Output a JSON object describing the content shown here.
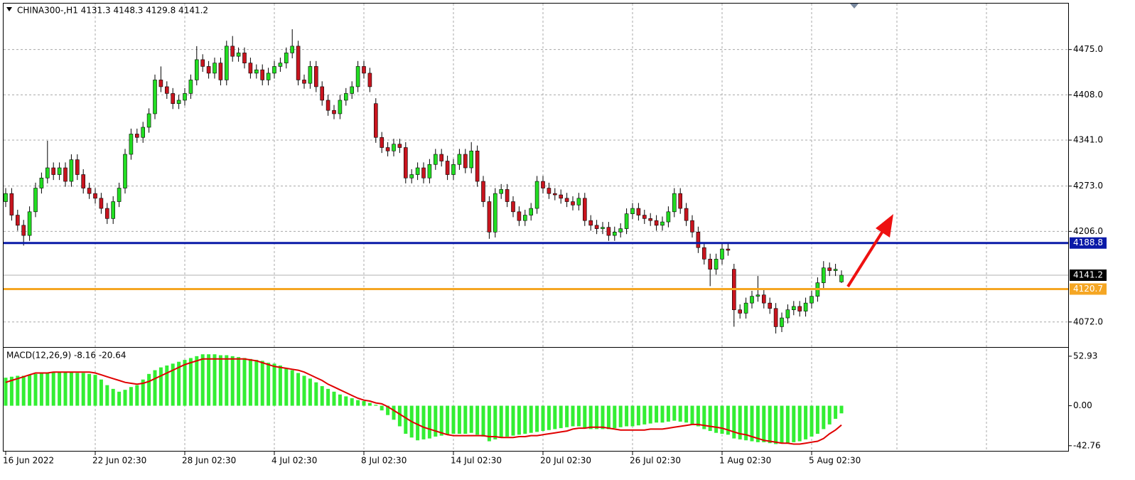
{
  "chart_data": [
    {
      "type": "candlestick",
      "title": "CHINA300-,H1  4131.3 4148.3 4129.8 4141.2",
      "categories": [
        "16 Jun 2022",
        null,
        null,
        null,
        null,
        null,
        null,
        null,
        null,
        null,
        null,
        null,
        null,
        null,
        null,
        "22 Jun 02:30",
        null,
        null,
        null,
        null,
        null,
        null,
        null,
        null,
        null,
        null,
        null,
        null,
        null,
        null,
        "28 Jun 02:30",
        null,
        null,
        null,
        null,
        null,
        null,
        null,
        null,
        null,
        null,
        null,
        null,
        null,
        null,
        "4 Jul 02:30",
        null,
        null,
        null,
        null,
        null,
        null,
        null,
        null,
        null,
        null,
        null,
        null,
        null,
        null,
        "8 Jul 02:30",
        null,
        null,
        null,
        null,
        null,
        null,
        null,
        null,
        null,
        null,
        null,
        null,
        null,
        null,
        "14 Jul 02:30",
        null,
        null,
        null,
        null,
        null,
        null,
        null,
        null,
        null,
        null,
        null,
        null,
        null,
        null,
        "20 Jul 02:30",
        null,
        null,
        null,
        null,
        null,
        null,
        null,
        null,
        null,
        null,
        null,
        null,
        null,
        null,
        "26 Jul 02:30",
        null,
        null,
        null,
        null,
        null,
        null,
        null,
        null,
        null,
        null,
        null,
        null,
        null,
        null,
        "1 Aug 02:30",
        null,
        null,
        null,
        null,
        null,
        null,
        null,
        null,
        null,
        null,
        null,
        null,
        null,
        null,
        "5 Aug 02:30",
        null,
        null,
        null,
        null,
        null
      ],
      "open": [
        4250,
        4262,
        4230,
        4215,
        4200,
        4235,
        4270,
        4285,
        4300,
        4290,
        4300,
        4280,
        4312,
        4290,
        4270,
        4262,
        4255,
        4240,
        4225,
        4250,
        4270,
        4320,
        4350,
        4345,
        4360,
        4380,
        4430,
        4420,
        4410,
        4395,
        4400,
        4410,
        4430,
        4460,
        4450,
        4440,
        4455,
        4430,
        4480,
        4465,
        4470,
        4455,
        4440,
        4445,
        4430,
        4440,
        4450,
        4455,
        4470,
        4480,
        4430,
        4425,
        4450,
        4420,
        4400,
        4385,
        4380,
        4400,
        4410,
        4420,
        4450,
        4440,
        4395,
        4345,
        4330,
        4325,
        4335,
        4330,
        4285,
        4290,
        4300,
        4285,
        4305,
        4320,
        4310,
        4290,
        4305,
        4320,
        4300,
        4325,
        4280,
        4250,
        4205,
        4262,
        4268,
        4250,
        4235,
        4222,
        4230,
        4240,
        4280,
        4270,
        4262,
        4260,
        4255,
        4250,
        4245,
        4255,
        4222,
        4215,
        4210,
        4212,
        4200,
        4205,
        4210,
        4232,
        4240,
        4230,
        4225,
        4222,
        4215,
        4220,
        4235,
        4262,
        4240,
        4222,
        4205,
        4182,
        4165,
        4150,
        4165,
        4180,
        4150,
        4090,
        4085,
        4100,
        4110,
        4112,
        4100,
        4092,
        4065,
        4078,
        4090,
        4095,
        4088,
        4100,
        4110,
        4130,
        4152,
        4148,
        4131.3
      ],
      "high": [
        4270,
        4270,
        4238,
        4223,
        4243,
        4278,
        4293,
        4340,
        4308,
        4308,
        4308,
        4320,
        4320,
        4298,
        4278,
        4270,
        4263,
        4248,
        4258,
        4278,
        4328,
        4358,
        4358,
        4368,
        4388,
        4438,
        4450,
        4428,
        4418,
        4408,
        4418,
        4438,
        4480,
        4468,
        4458,
        4463,
        4463,
        4488,
        4495,
        4478,
        4478,
        4463,
        4453,
        4453,
        4448,
        4458,
        4463,
        4478,
        4505,
        4488,
        4438,
        4458,
        4458,
        4428,
        4408,
        4393,
        4408,
        4418,
        4428,
        4458,
        4458,
        4448,
        4403,
        4353,
        4338,
        4343,
        4343,
        4338,
        4298,
        4308,
        4308,
        4313,
        4328,
        4328,
        4318,
        4313,
        4328,
        4328,
        4338,
        4333,
        4288,
        4258,
        4270,
        4276,
        4276,
        4258,
        4243,
        4238,
        4248,
        4288,
        4288,
        4278,
        4270,
        4268,
        4263,
        4258,
        4263,
        4263,
        4230,
        4223,
        4220,
        4220,
        4213,
        4218,
        4240,
        4248,
        4248,
        4238,
        4233,
        4230,
        4228,
        4243,
        4270,
        4270,
        4248,
        4230,
        4213,
        4190,
        4173,
        4173,
        4188,
        4188,
        4158,
        4098,
        4108,
        4118,
        4140,
        4120,
        4108,
        4100,
        4086,
        4098,
        4103,
        4103,
        4108,
        4118,
        4138,
        4162,
        4160,
        4158,
        4148.3
      ],
      "low": [
        4242,
        4222,
        4207,
        4185,
        4192,
        4227,
        4262,
        4277,
        4282,
        4282,
        4272,
        4272,
        4282,
        4262,
        4254,
        4247,
        4232,
        4217,
        4217,
        4242,
        4262,
        4312,
        4337,
        4337,
        4352,
        4372,
        4412,
        4402,
        4387,
        4387,
        4392,
        4402,
        4422,
        4442,
        4432,
        4432,
        4422,
        4422,
        4457,
        4457,
        4447,
        4432,
        4432,
        4422,
        4422,
        4432,
        4442,
        4447,
        4462,
        4422,
        4417,
        4417,
        4412,
        4392,
        4377,
        4372,
        4372,
        4392,
        4402,
        4412,
        4432,
        4412,
        4337,
        4322,
        4317,
        4317,
        4322,
        4277,
        4277,
        4282,
        4277,
        4277,
        4297,
        4302,
        4282,
        4282,
        4297,
        4292,
        4292,
        4272,
        4242,
        4195,
        4197,
        4254,
        4242,
        4227,
        4214,
        4214,
        4222,
        4232,
        4262,
        4254,
        4252,
        4247,
        4242,
        4237,
        4237,
        4214,
        4207,
        4202,
        4202,
        4192,
        4192,
        4197,
        4202,
        4224,
        4222,
        4217,
        4214,
        4207,
        4207,
        4212,
        4227,
        4232,
        4214,
        4197,
        4174,
        4157,
        4125,
        4142,
        4157,
        4170,
        4065,
        4077,
        4077,
        4092,
        4102,
        4092,
        4084,
        4055,
        4057,
        4070,
        4082,
        4080,
        4080,
        4092,
        4102,
        4122,
        4140,
        4140,
        4129.8
      ],
      "close": [
        4262,
        4230,
        4215,
        4200,
        4235,
        4270,
        4285,
        4300,
        4290,
        4300,
        4280,
        4312,
        4290,
        4270,
        4262,
        4255,
        4240,
        4225,
        4250,
        4270,
        4320,
        4350,
        4345,
        4360,
        4380,
        4430,
        4420,
        4410,
        4395,
        4400,
        4410,
        4430,
        4460,
        4450,
        4440,
        4455,
        4430,
        4480,
        4465,
        4470,
        4455,
        4440,
        4445,
        4430,
        4440,
        4450,
        4455,
        4470,
        4480,
        4430,
        4425,
        4450,
        4420,
        4400,
        4385,
        4380,
        4400,
        4410,
        4420,
        4450,
        4440,
        4420,
        4345,
        4330,
        4325,
        4335,
        4330,
        4285,
        4290,
        4300,
        4285,
        4305,
        4320,
        4310,
        4290,
        4305,
        4320,
        4300,
        4325,
        4280,
        4250,
        4205,
        4262,
        4268,
        4250,
        4235,
        4222,
        4230,
        4240,
        4280,
        4270,
        4262,
        4260,
        4255,
        4250,
        4245,
        4255,
        4222,
        4215,
        4210,
        4212,
        4200,
        4205,
        4210,
        4232,
        4240,
        4230,
        4225,
        4222,
        4215,
        4220,
        4235,
        4262,
        4240,
        4222,
        4205,
        4182,
        4165,
        4150,
        4165,
        4180,
        4178,
        4090,
        4085,
        4100,
        4110,
        4112,
        4100,
        4092,
        4065,
        4078,
        4090,
        4095,
        4088,
        4100,
        4110,
        4130,
        4152,
        4148,
        4150,
        4141.2
      ],
      "up_color": "#22dd22",
      "down_color": "#c8141e",
      "ylim": [
        4036,
        4543
      ],
      "yticks": [
        {
          "value": 4475,
          "label": "4475.0"
        },
        {
          "value": 4408,
          "label": "4408.0"
        },
        {
          "value": 4341,
          "label": "4341.0"
        },
        {
          "value": 4273,
          "label": "4273.0"
        },
        {
          "value": 4206,
          "label": "4206.0"
        },
        {
          "value": 4072,
          "label": "4072.0"
        }
      ],
      "levels": [
        {
          "value": 4188.8,
          "color": "#0a1aa8"
        },
        {
          "value": 4120.7,
          "color": "#f5a623"
        }
      ],
      "current_price": 4141.2,
      "grid": true
    },
    {
      "type": "macd",
      "title": "MACD(12,26,9) -8.16 -20.64",
      "histogram": {
        "color": "#33ee33",
        "values": [
          30,
          31,
          32,
          32,
          33,
          34,
          35,
          35,
          36,
          36,
          36,
          36,
          35,
          35,
          34,
          33,
          28,
          22,
          18,
          15,
          17,
          20,
          22,
          28,
          34,
          38,
          41,
          43,
          45,
          47,
          49,
          51,
          53,
          55,
          55,
          55,
          54,
          54,
          53,
          52,
          51,
          50,
          49,
          48,
          46,
          45,
          43,
          40,
          38,
          35,
          32,
          29,
          25,
          21,
          18,
          15,
          12,
          10,
          8,
          6,
          5,
          3,
          1,
          -5,
          -10,
          -15,
          -22,
          -30,
          -34,
          -37,
          -36,
          -35,
          -33,
          -32,
          -31,
          -30,
          -30,
          -30,
          -29,
          -31,
          -33,
          -38,
          -36,
          -34,
          -33,
          -32,
          -31,
          -30,
          -29,
          -28,
          -27,
          -26,
          -25,
          -24,
          -23,
          -22,
          -22,
          -24,
          -25,
          -25,
          -25,
          -25,
          -24,
          -23,
          -22,
          -22,
          -21,
          -20,
          -19,
          -18,
          -18,
          -17,
          -16,
          -17,
          -18,
          -20,
          -22,
          -25,
          -27,
          -29,
          -30,
          -31,
          -35,
          -36,
          -37,
          -38,
          -39,
          -39,
          -40,
          -41,
          -40,
          -40,
          -39,
          -38,
          -36,
          -33,
          -30,
          -25,
          -20,
          -14,
          -8.16
        ]
      },
      "signal": {
        "color": "#e00000",
        "values": [
          25,
          27,
          29,
          31,
          33,
          35,
          35,
          35,
          36,
          36,
          36,
          36,
          36,
          36,
          36,
          35,
          33,
          31,
          29,
          27,
          25,
          24,
          23,
          24,
          26,
          29,
          32,
          35,
          38,
          41,
          44,
          46,
          48,
          50,
          50,
          50,
          50,
          50,
          50,
          50,
          50,
          49,
          48,
          46,
          44,
          42,
          41,
          40,
          39,
          38,
          36,
          33,
          30,
          27,
          23,
          20,
          17,
          14,
          11,
          8,
          6,
          5,
          3,
          2,
          -1,
          -5,
          -9,
          -13,
          -17,
          -20,
          -23,
          -25,
          -27,
          -29,
          -31,
          -32,
          -32,
          -32,
          -32,
          -32,
          -32,
          -33,
          -33,
          -34,
          -34,
          -34,
          -33,
          -33,
          -32,
          -32,
          -31,
          -30,
          -29,
          -28,
          -27,
          -25,
          -24,
          -24,
          -23,
          -23,
          -23,
          -24,
          -25,
          -26,
          -26,
          -26,
          -26,
          -26,
          -25,
          -25,
          -25,
          -24,
          -23,
          -22,
          -21,
          -20,
          -20,
          -21,
          -22,
          -23,
          -24,
          -26,
          -28,
          -30,
          -31,
          -33,
          -35,
          -37,
          -38,
          -39,
          -40,
          -40,
          -41,
          -41,
          -40,
          -39,
          -38,
          -35,
          -30,
          -26,
          -20.64
        ]
      },
      "ylim": [
        -49,
        62
      ],
      "yticks": [
        52.93,
        {
          "value": 0,
          "label": "0.00"
        },
        -42.76
      ]
    }
  ]
}
